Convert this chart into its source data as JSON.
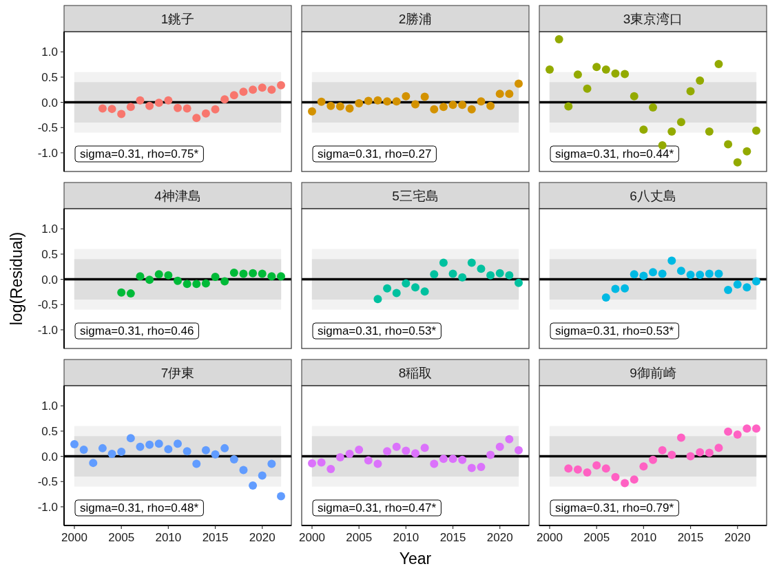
{
  "chart_data": [
    {
      "type": "scatter",
      "title": "1銚子",
      "color": "#F8766D",
      "marker": "circle",
      "tick_labels": "y",
      "xlim": [
        1998.9,
        2023.1
      ],
      "ylim": [
        -1.37,
        1.4
      ],
      "yticks": [
        {
          "value": -1,
          "label": "-1.0"
        },
        {
          "value": -0.5,
          "label": "-0.5"
        },
        {
          "value": 0,
          "label": "0.0"
        },
        {
          "value": 0.5,
          "label": "0.5"
        },
        {
          "value": 1,
          "label": "1.0"
        }
      ],
      "x": [
        2003,
        2004,
        2005,
        2006,
        2007,
        2008,
        2009,
        2010,
        2011,
        2012,
        2013,
        2014,
        2015,
        2016,
        2017,
        2018,
        2019,
        2020,
        2021,
        2022
      ],
      "values": [
        -0.12,
        -0.13,
        -0.23,
        -0.09,
        0.04,
        -0.07,
        -0.01,
        0.04,
        -0.11,
        -0.12,
        -0.31,
        -0.22,
        -0.14,
        0.06,
        0.14,
        0.21,
        0.25,
        0.29,
        0.25,
        0.34
      ],
      "bands": [
        {
          "axis": "y",
          "from": -0.6,
          "to": 0.6,
          "color": "#f2f2f2"
        },
        {
          "axis": "y",
          "from": -0.4,
          "to": 0.4,
          "color": "#dedede"
        }
      ],
      "ref_lines": [
        {
          "axis": "y",
          "value": 0,
          "color": "#000000"
        }
      ],
      "annotations": [
        "sigma=0.31, rho=0.75*"
      ]
    },
    {
      "type": "scatter",
      "title": "2勝浦",
      "color": "#D39200",
      "marker": "circle",
      "tick_labels": false,
      "xlim": [
        1998.9,
        2023.1
      ],
      "ylim": [
        -1.37,
        1.4
      ],
      "x": [
        2000,
        2001,
        2002,
        2003,
        2004,
        2005,
        2006,
        2007,
        2008,
        2009,
        2010,
        2011,
        2012,
        2013,
        2014,
        2015,
        2016,
        2017,
        2018,
        2019,
        2020,
        2021,
        2022
      ],
      "values": [
        -0.18,
        0.01,
        -0.07,
        -0.08,
        -0.12,
        -0.02,
        0.03,
        0.04,
        0.02,
        0.02,
        0.12,
        -0.04,
        0.11,
        -0.14,
        -0.09,
        -0.05,
        -0.05,
        -0.14,
        0.02,
        -0.07,
        0.17,
        0.17,
        0.37
      ],
      "bands": [
        {
          "axis": "y",
          "from": -0.6,
          "to": 0.6,
          "color": "#f2f2f2"
        },
        {
          "axis": "y",
          "from": -0.4,
          "to": 0.4,
          "color": "#dedede"
        }
      ],
      "ref_lines": [
        {
          "axis": "y",
          "value": 0,
          "color": "#000000"
        }
      ],
      "annotations": [
        "sigma=0.31, rho=0.27"
      ]
    },
    {
      "type": "scatter",
      "title": "3東京湾口",
      "color": "#93AA00",
      "marker": "circle",
      "tick_labels": false,
      "xlim": [
        1998.9,
        2023.1
      ],
      "ylim": [
        -1.37,
        1.4
      ],
      "x": [
        2000,
        2001,
        2002,
        2003,
        2004,
        2005,
        2006,
        2007,
        2008,
        2009,
        2010,
        2011,
        2012,
        2013,
        2014,
        2015,
        2016,
        2017,
        2018,
        2019,
        2020,
        2021,
        2022
      ],
      "values": [
        0.65,
        1.25,
        -0.08,
        0.55,
        0.27,
        0.7,
        0.65,
        0.57,
        0.56,
        0.12,
        -0.54,
        -0.1,
        -0.85,
        -0.58,
        -0.39,
        0.22,
        0.43,
        -0.58,
        0.76,
        -0.83,
        -1.19,
        -0.97,
        -0.56
      ],
      "bands": [
        {
          "axis": "y",
          "from": -0.6,
          "to": 0.6,
          "color": "#f2f2f2"
        },
        {
          "axis": "y",
          "from": -0.4,
          "to": 0.4,
          "color": "#dedede"
        }
      ],
      "ref_lines": [
        {
          "axis": "y",
          "value": 0,
          "color": "#000000"
        }
      ],
      "annotations": [
        "sigma=0.31, rho=0.44*"
      ]
    },
    {
      "type": "scatter",
      "title": "4神津島",
      "color": "#00BA38",
      "marker": "circle",
      "tick_labels": "y",
      "ylabel": "log(Residual)",
      "xlim": [
        1998.9,
        2023.1
      ],
      "ylim": [
        -1.37,
        1.4
      ],
      "yticks": [
        {
          "value": -1,
          "label": "-1.0"
        },
        {
          "value": -0.5,
          "label": "-0.5"
        },
        {
          "value": 0,
          "label": "0.0"
        },
        {
          "value": 0.5,
          "label": "0.5"
        },
        {
          "value": 1,
          "label": "1.0"
        }
      ],
      "x": [
        2005,
        2006,
        2007,
        2008,
        2009,
        2010,
        2011,
        2012,
        2013,
        2014,
        2015,
        2016,
        2017,
        2018,
        2019,
        2020,
        2021,
        2022
      ],
      "values": [
        -0.26,
        -0.28,
        0.06,
        -0.01,
        0.1,
        0.08,
        -0.03,
        -0.09,
        -0.09,
        -0.08,
        0.05,
        -0.04,
        0.13,
        0.11,
        0.12,
        0.11,
        0.06,
        0.06
      ],
      "bands": [
        {
          "axis": "y",
          "from": -0.6,
          "to": 0.6,
          "color": "#f2f2f2"
        },
        {
          "axis": "y",
          "from": -0.4,
          "to": 0.4,
          "color": "#dedede"
        }
      ],
      "ref_lines": [
        {
          "axis": "y",
          "value": 0,
          "color": "#000000"
        }
      ],
      "annotations": [
        "sigma=0.31, rho=0.46"
      ]
    },
    {
      "type": "scatter",
      "title": "5三宅島",
      "color": "#00C19F",
      "marker": "circle",
      "tick_labels": false,
      "xlim": [
        1998.9,
        2023.1
      ],
      "ylim": [
        -1.37,
        1.4
      ],
      "x": [
        2007,
        2008,
        2009,
        2010,
        2011,
        2012,
        2013,
        2014,
        2015,
        2016,
        2017,
        2018,
        2019,
        2020,
        2021,
        2022
      ],
      "values": [
        -0.39,
        -0.18,
        -0.27,
        -0.08,
        -0.16,
        -0.24,
        0.1,
        0.33,
        0.11,
        0.04,
        0.33,
        0.21,
        0.08,
        0.12,
        0.08,
        -0.07
      ],
      "bands": [
        {
          "axis": "y",
          "from": -0.6,
          "to": 0.6,
          "color": "#f2f2f2"
        },
        {
          "axis": "y",
          "from": -0.4,
          "to": 0.4,
          "color": "#dedede"
        }
      ],
      "ref_lines": [
        {
          "axis": "y",
          "value": 0,
          "color": "#000000"
        }
      ],
      "annotations": [
        "sigma=0.31, rho=0.53*"
      ]
    },
    {
      "type": "scatter",
      "title": "6八丈島",
      "color": "#00B9E3",
      "marker": "circle",
      "tick_labels": false,
      "xlim": [
        1998.9,
        2023.1
      ],
      "ylim": [
        -1.37,
        1.4
      ],
      "x": [
        2006,
        2007,
        2008,
        2009,
        2010,
        2011,
        2012,
        2013,
        2014,
        2015,
        2016,
        2017,
        2018,
        2019,
        2020,
        2021,
        2022
      ],
      "values": [
        -0.36,
        -0.19,
        -0.18,
        0.1,
        0.07,
        0.14,
        0.11,
        0.37,
        0.17,
        0.09,
        0.09,
        0.11,
        0.11,
        -0.21,
        -0.1,
        -0.16,
        -0.04
      ],
      "bands": [
        {
          "axis": "y",
          "from": -0.6,
          "to": 0.6,
          "color": "#f2f2f2"
        },
        {
          "axis": "y",
          "from": -0.4,
          "to": 0.4,
          "color": "#dedede"
        }
      ],
      "ref_lines": [
        {
          "axis": "y",
          "value": 0,
          "color": "#000000"
        }
      ],
      "annotations": [
        "sigma=0.31, rho=0.53*"
      ]
    },
    {
      "type": "scatter",
      "title": "7伊東",
      "color": "#619CFF",
      "marker": "circle",
      "xlim": [
        1998.9,
        2023.1
      ],
      "xticks": [
        2000,
        2005,
        2010,
        2015,
        2020
      ],
      "ylim": [
        -1.37,
        1.4
      ],
      "yticks": [
        {
          "value": -1,
          "label": "-1.0"
        },
        {
          "value": -0.5,
          "label": "-0.5"
        },
        {
          "value": 0,
          "label": "0.0"
        },
        {
          "value": 0.5,
          "label": "0.5"
        },
        {
          "value": 1,
          "label": "1.0"
        }
      ],
      "x": [
        2000,
        2001,
        2002,
        2003,
        2004,
        2005,
        2006,
        2007,
        2008,
        2009,
        2010,
        2011,
        2012,
        2013,
        2014,
        2015,
        2016,
        2017,
        2018,
        2019,
        2020,
        2021,
        2022
      ],
      "values": [
        0.24,
        0.13,
        -0.13,
        0.16,
        0.05,
        0.09,
        0.36,
        0.19,
        0.23,
        0.25,
        0.14,
        0.25,
        0.1,
        -0.15,
        0.12,
        0.04,
        0.16,
        -0.06,
        -0.27,
        -0.58,
        -0.38,
        -0.15,
        -0.79
      ],
      "bands": [
        {
          "axis": "y",
          "from": -0.6,
          "to": 0.6,
          "color": "#f2f2f2"
        },
        {
          "axis": "y",
          "from": -0.4,
          "to": 0.4,
          "color": "#dedede"
        }
      ],
      "ref_lines": [
        {
          "axis": "y",
          "value": 0,
          "color": "#000000"
        }
      ],
      "annotations": [
        "sigma=0.31, rho=0.48*"
      ]
    },
    {
      "type": "scatter",
      "title": "8稲取",
      "color": "#DB72FB",
      "marker": "circle",
      "tick_labels": "x",
      "xlabel": "Year",
      "xlim": [
        1998.9,
        2023.1
      ],
      "xticks": [
        2000,
        2005,
        2010,
        2015,
        2020
      ],
      "ylim": [
        -1.37,
        1.4
      ],
      "x": [
        2000,
        2001,
        2002,
        2003,
        2004,
        2005,
        2006,
        2007,
        2008,
        2009,
        2010,
        2011,
        2012,
        2013,
        2014,
        2015,
        2016,
        2017,
        2018,
        2019,
        2020,
        2021,
        2022
      ],
      "values": [
        -0.14,
        -0.12,
        -0.25,
        -0.02,
        0.05,
        0.13,
        -0.08,
        -0.15,
        0.1,
        0.19,
        0.11,
        0.06,
        0.17,
        -0.15,
        -0.05,
        -0.05,
        -0.07,
        -0.23,
        -0.21,
        0.03,
        0.19,
        0.34,
        0.12
      ],
      "bands": [
        {
          "axis": "y",
          "from": -0.6,
          "to": 0.6,
          "color": "#f2f2f2"
        },
        {
          "axis": "y",
          "from": -0.4,
          "to": 0.4,
          "color": "#dedede"
        }
      ],
      "ref_lines": [
        {
          "axis": "y",
          "value": 0,
          "color": "#000000"
        }
      ],
      "annotations": [
        "sigma=0.31, rho=0.47*"
      ]
    },
    {
      "type": "scatter",
      "title": "9御前崎",
      "color": "#FF61C3",
      "marker": "circle",
      "tick_labels": "x",
      "xlim": [
        1998.9,
        2023.1
      ],
      "xticks": [
        2000,
        2005,
        2010,
        2015,
        2020
      ],
      "ylim": [
        -1.37,
        1.4
      ],
      "x": [
        2002,
        2003,
        2004,
        2005,
        2006,
        2007,
        2008,
        2009,
        2010,
        2011,
        2012,
        2013,
        2014,
        2015,
        2016,
        2017,
        2018,
        2019,
        2020,
        2021,
        2022
      ],
      "values": [
        -0.24,
        -0.26,
        -0.32,
        -0.18,
        -0.24,
        -0.41,
        -0.53,
        -0.46,
        -0.2,
        -0.07,
        0.12,
        0.03,
        0.37,
        0.0,
        0.08,
        0.07,
        0.17,
        0.49,
        0.43,
        0.55,
        0.55
      ],
      "bands": [
        {
          "axis": "y",
          "from": -0.6,
          "to": 0.6,
          "color": "#f2f2f2"
        },
        {
          "axis": "y",
          "from": -0.4,
          "to": 0.4,
          "color": "#dedede"
        }
      ],
      "ref_lines": [
        {
          "axis": "y",
          "value": 0,
          "color": "#000000"
        }
      ],
      "annotations": [
        "sigma=0.31, rho=0.79*"
      ]
    }
  ]
}
